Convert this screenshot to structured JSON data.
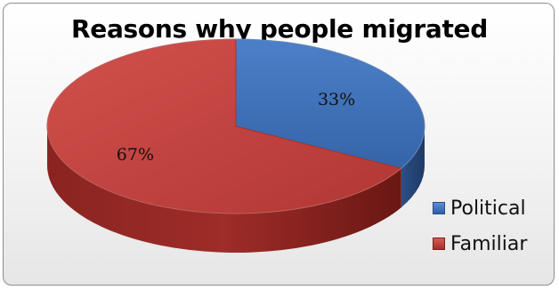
{
  "chart_data": {
    "type": "pie",
    "title": "Reasons why people migrated",
    "categories": [
      "Political",
      "Familiar"
    ],
    "values": [
      33,
      67
    ],
    "data_labels": [
      "33%",
      "67%"
    ],
    "colors": [
      "#3f6fb7",
      "#b53a35"
    ],
    "style": "3d",
    "legend_position": "right"
  }
}
